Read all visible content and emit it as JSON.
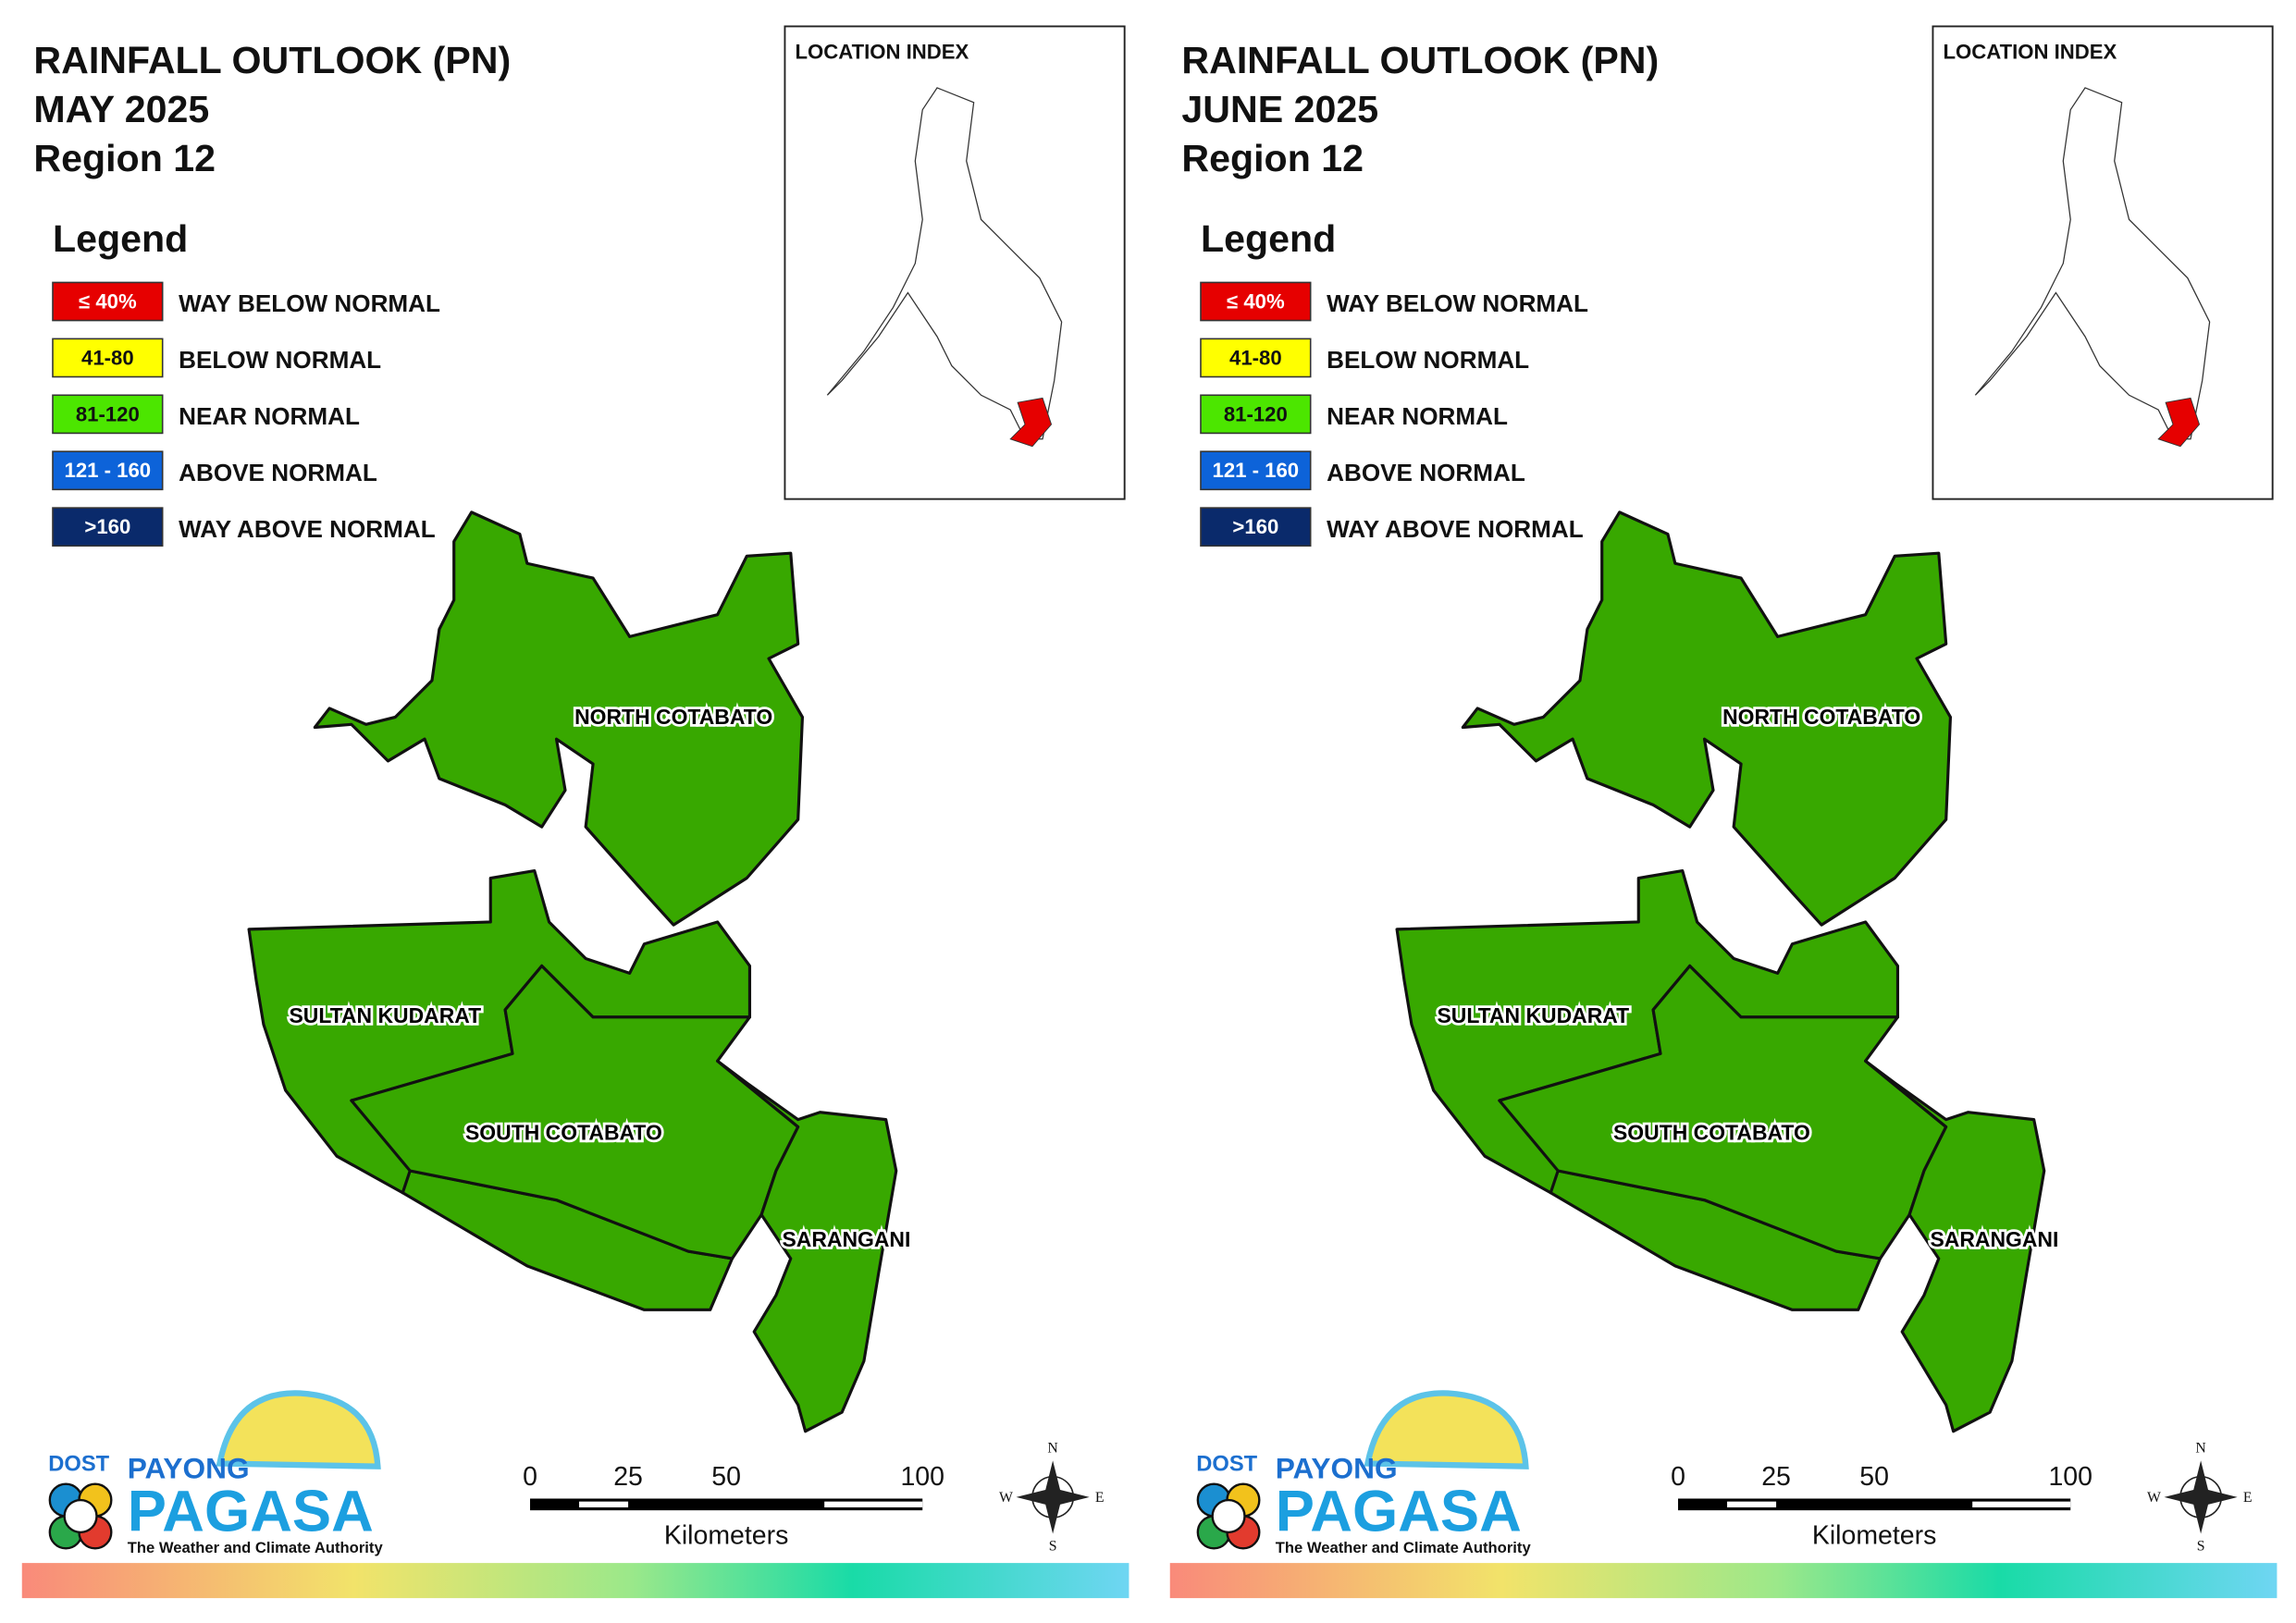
{
  "panels": [
    {
      "title": [
        "RAINFALL OUTLOOK (PN)",
        "MAY 2025",
        "Region 12"
      ],
      "location_index": "LOCATION INDEX",
      "legend": {
        "title": "Legend",
        "items": [
          {
            "range": "≤ 40%",
            "label": "WAY BELOW NORMAL",
            "color": "#e60000"
          },
          {
            "range": "41-80",
            "label": "BELOW NORMAL",
            "color": "#ffff00"
          },
          {
            "range": "81-120",
            "label": "NEAR NORMAL",
            "color": "#4ce600"
          },
          {
            "range": "121 - 160",
            "label": "ABOVE NORMAL",
            "color": "#0d63d9"
          },
          {
            "range": ">160",
            "label": "WAY ABOVE NORMAL",
            "color": "#0a2a6b"
          }
        ]
      },
      "region_color": "#38a800",
      "regions": [
        "NORTH COTABATO",
        "SULTAN KUDARAT",
        "SOUTH COTABATO",
        "SARANGANI"
      ],
      "scale": {
        "ticks": [
          0,
          25,
          50,
          100
        ],
        "unit": "Kilometers"
      },
      "compass": [
        "N",
        "E",
        "S",
        "W"
      ],
      "logo": {
        "dost": "DOST",
        "payong": "PAYONG",
        "pagasa": "PAGASA",
        "tagline": "The Weather and Climate Authority"
      }
    },
    {
      "title": [
        "RAINFALL OUTLOOK (PN)",
        "JUNE 2025",
        "Region 12"
      ],
      "location_index": "LOCATION INDEX",
      "legend": {
        "title": "Legend",
        "items": [
          {
            "range": "≤ 40%",
            "label": "WAY BELOW NORMAL",
            "color": "#e60000"
          },
          {
            "range": "41-80",
            "label": "BELOW NORMAL",
            "color": "#ffff00"
          },
          {
            "range": "81-120",
            "label": "NEAR NORMAL",
            "color": "#4ce600"
          },
          {
            "range": "121 - 160",
            "label": "ABOVE NORMAL",
            "color": "#0d63d9"
          },
          {
            "range": ">160",
            "label": "WAY ABOVE NORMAL",
            "color": "#0a2a6b"
          }
        ]
      },
      "region_color": "#38a800",
      "regions": [
        "NORTH COTABATO",
        "SULTAN KUDARAT",
        "SOUTH COTABATO",
        "SARANGANI"
      ],
      "scale": {
        "ticks": [
          0,
          25,
          50,
          100
        ],
        "unit": "Kilometers"
      },
      "compass": [
        "N",
        "E",
        "S",
        "W"
      ],
      "logo": {
        "dost": "DOST",
        "payong": "PAYONG",
        "pagasa": "PAGASA",
        "tagline": "The Weather and Climate Authority"
      }
    }
  ]
}
